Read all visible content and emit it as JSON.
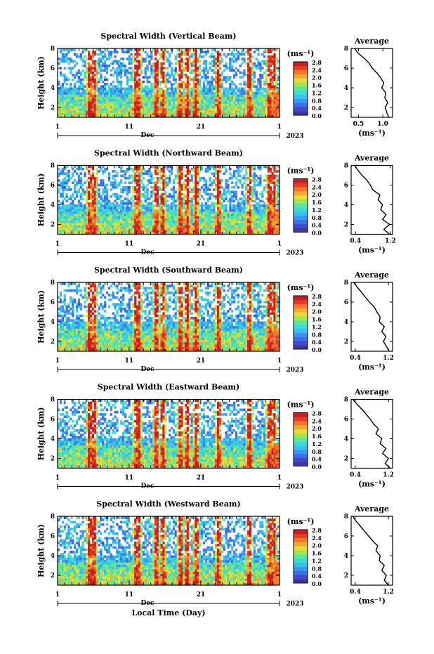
{
  "colors": [
    "#3a3a9a",
    "#4646c8",
    "#3c6ee6",
    "#3c96f0",
    "#3cbef0",
    "#3cdcd2",
    "#5ae6a0",
    "#a0e650",
    "#e6dc3c",
    "#f0aa32",
    "#f07828",
    "#e63c28",
    "#c81e1e"
  ],
  "chart_data": [
    {
      "type": "heatmap",
      "title": "Spectral Width (Vertical Beam)",
      "ylabel": "Height (km)",
      "ylim": [
        1,
        8
      ],
      "yticks": [
        "2",
        "4",
        "6",
        "8"
      ],
      "xticks": [
        "1",
        "11",
        "21",
        "1"
      ],
      "xlabel": "",
      "month": "Dec",
      "year": "2023",
      "colorbar_unit": "(ms⁻¹)",
      "colorbar_ticks": [
        "0.0",
        "0.4",
        "0.8",
        "1.2",
        "1.6",
        "2.0",
        "2.4",
        "2.8"
      ],
      "average": {
        "title": "Average",
        "xticks": [
          "0.5",
          "1.0"
        ],
        "xlim": [
          0.35,
          1.2
        ],
        "xlabel": "(ms⁻¹)",
        "heights": [
          1.0,
          1.5,
          2.0,
          2.5,
          3.0,
          3.5,
          4.0,
          4.5,
          5.0,
          5.5,
          6.0,
          6.5,
          7.0,
          7.5,
          8.0
        ],
        "values": [
          1.12,
          1.08,
          1.05,
          1.1,
          1.04,
          1.06,
          0.98,
          1.02,
          0.96,
          0.88,
          0.78,
          0.72,
          0.62,
          0.5,
          0.42
        ]
      }
    },
    {
      "type": "heatmap",
      "title": "Spectral Width (Northward Beam)",
      "ylabel": "Height (km)",
      "ylim": [
        1,
        8
      ],
      "yticks": [
        "2",
        "4",
        "6",
        "8"
      ],
      "xticks": [
        "1",
        "11",
        "21",
        "1"
      ],
      "xlabel": "",
      "month": "Dec",
      "year": "2023",
      "colorbar_unit": "(ms⁻¹)",
      "colorbar_ticks": [
        "0.0",
        "0.4",
        "0.8",
        "1.2",
        "1.6",
        "2.0",
        "2.4",
        "2.8"
      ],
      "average": {
        "title": "Average",
        "xticks": [
          "0.4",
          "1.2"
        ],
        "xlim": [
          0.3,
          1.25
        ],
        "xlabel": "(ms⁻¹)",
        "heights": [
          1.0,
          1.5,
          2.0,
          2.5,
          3.0,
          3.5,
          4.0,
          4.5,
          5.0,
          5.5,
          6.0,
          6.5,
          7.0,
          7.5,
          8.0
        ],
        "values": [
          1.18,
          1.05,
          1.18,
          1.02,
          1.1,
          0.98,
          1.02,
          0.92,
          0.96,
          0.8,
          0.74,
          0.66,
          0.55,
          0.46,
          0.38
        ]
      }
    },
    {
      "type": "heatmap",
      "title": "Spectral Width (Southward Beam)",
      "ylabel": "Height (km)",
      "ylim": [
        1,
        8
      ],
      "yticks": [
        "2",
        "4",
        "6",
        "8"
      ],
      "xticks": [
        "1",
        "11",
        "21",
        "1"
      ],
      "xlabel": "",
      "month": "Dec",
      "year": "2023",
      "colorbar_unit": "(ms⁻¹)",
      "colorbar_ticks": [
        "0.0",
        "0.4",
        "0.8",
        "1.2",
        "1.6",
        "2.0",
        "2.4",
        "2.8"
      ],
      "average": {
        "title": "Average",
        "xticks": [
          "0.4",
          "1.2"
        ],
        "xlim": [
          0.3,
          1.3
        ],
        "xlabel": "(ms⁻¹)",
        "heights": [
          1.0,
          1.5,
          2.0,
          2.5,
          3.0,
          3.5,
          4.0,
          4.5,
          5.0,
          5.5,
          6.0,
          6.5,
          7.0,
          7.5,
          8.0
        ],
        "values": [
          1.22,
          1.15,
          1.08,
          1.14,
          1.04,
          1.1,
          0.98,
          1.0,
          0.92,
          0.86,
          0.74,
          0.64,
          0.55,
          0.45,
          0.36
        ]
      }
    },
    {
      "type": "heatmap",
      "title": "Spectral Width (Eastward Beam)",
      "ylabel": "Height (km)",
      "ylim": [
        1,
        8
      ],
      "yticks": [
        "2",
        "4",
        "6",
        "8"
      ],
      "xticks": [
        "1",
        "11",
        "21",
        "1"
      ],
      "xlabel": "",
      "month": "Dec",
      "year": "2023",
      "colorbar_unit": "(ms⁻¹)",
      "colorbar_ticks": [
        "0.0",
        "0.4",
        "0.8",
        "1.2",
        "1.6",
        "2.0",
        "2.4",
        "2.8"
      ],
      "average": {
        "title": "Average",
        "xticks": [
          "0.4",
          "1.2"
        ],
        "xlim": [
          0.3,
          1.3
        ],
        "xlabel": "(ms⁻¹)",
        "heights": [
          1.0,
          1.5,
          2.0,
          2.5,
          3.0,
          3.5,
          4.0,
          4.5,
          5.0,
          5.5,
          6.0,
          6.5,
          7.0,
          7.5,
          8.0
        ],
        "values": [
          1.24,
          1.12,
          1.2,
          1.06,
          1.14,
          1.0,
          1.04,
          0.9,
          0.96,
          0.84,
          0.76,
          0.66,
          0.56,
          0.44,
          0.34
        ]
      }
    },
    {
      "type": "heatmap",
      "title": "Spectral Width (Westward Beam)",
      "ylabel": "Height (km)",
      "ylim": [
        1,
        8
      ],
      "yticks": [
        "2",
        "4",
        "6",
        "8"
      ],
      "xticks": [
        "1",
        "11",
        "21",
        "1"
      ],
      "xlabel": "Local Time (Day)",
      "month": "Dec",
      "year": "2023",
      "colorbar_unit": "(ms⁻¹)",
      "colorbar_ticks": [
        "0.0",
        "0.4",
        "0.8",
        "1.2",
        "1.6",
        "2.0",
        "2.4",
        "2.8"
      ],
      "average": {
        "title": "Average",
        "xticks": [
          "0.4",
          "1.2"
        ],
        "xlim": [
          0.3,
          1.3
        ],
        "xlabel": "(ms⁻¹)",
        "heights": [
          1.0,
          1.5,
          2.0,
          2.5,
          3.0,
          3.5,
          4.0,
          4.5,
          5.0,
          5.5,
          6.0,
          6.5,
          7.0,
          7.5,
          8.0
        ],
        "values": [
          1.2,
          1.1,
          1.15,
          1.04,
          1.1,
          0.98,
          1.0,
          0.9,
          0.94,
          0.82,
          0.72,
          0.62,
          0.52,
          0.42,
          0.34
        ]
      }
    }
  ]
}
